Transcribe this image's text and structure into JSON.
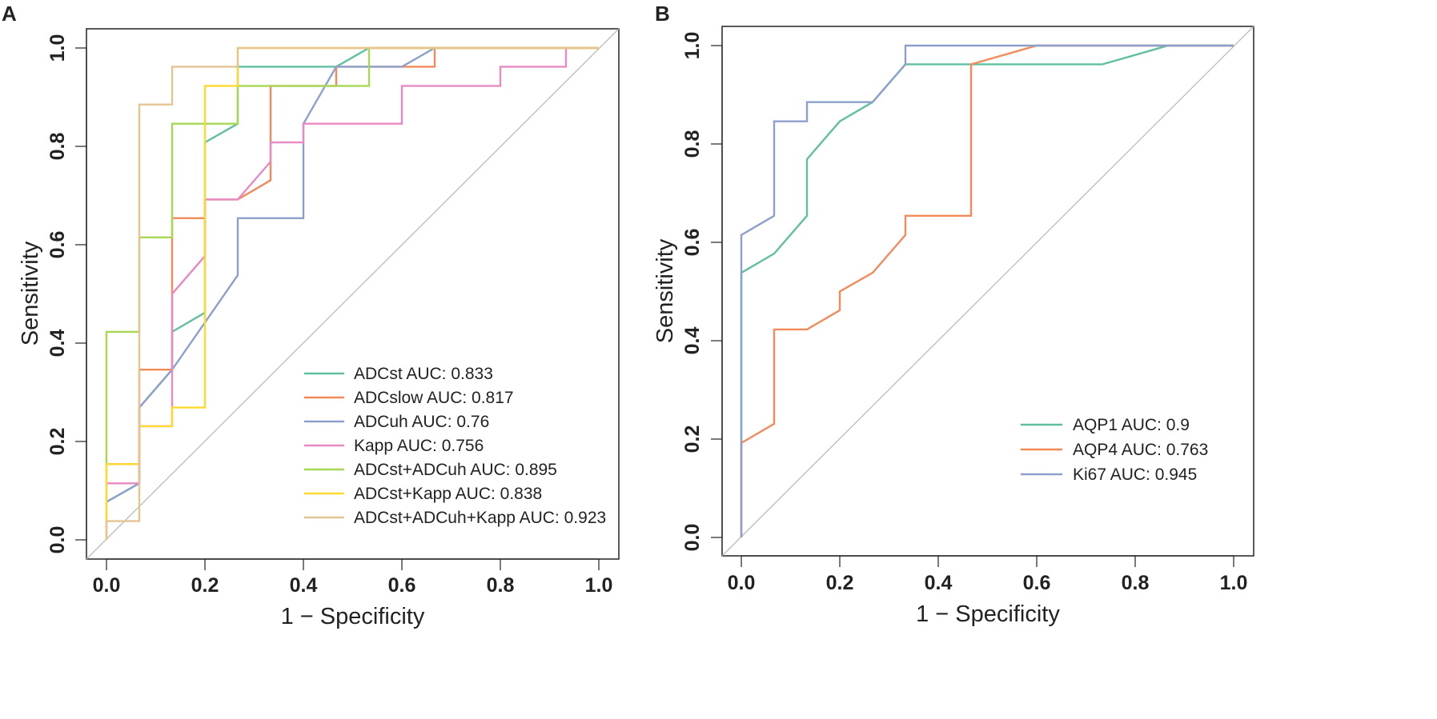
{
  "figure": {
    "panels": [
      "A",
      "B"
    ]
  },
  "chart_data": [
    {
      "type": "line",
      "panel": "A",
      "xlabel": "1 − Specificity",
      "ylabel": "Sensitivity",
      "xlim": [
        0,
        1
      ],
      "ylim": [
        0,
        1
      ],
      "ticks": [
        "0.0",
        "0.2",
        "0.4",
        "0.6",
        "0.8",
        "1.0"
      ],
      "legend_position": "bottom-right",
      "reference_line": {
        "from": [
          0,
          0
        ],
        "to": [
          1,
          1
        ],
        "color": "#bbbbbb"
      },
      "series": [
        {
          "name": "ADCst",
          "legend": "ADCst AUC: 0.833",
          "color": "#5fbfa0",
          "points": [
            [
              0,
              0.077
            ],
            [
              0.0667,
              0.115
            ],
            [
              0.0667,
              0.269
            ],
            [
              0.1333,
              0.346
            ],
            [
              0.1333,
              0.423
            ],
            [
              0.2,
              0.462
            ],
            [
              0.2,
              0.808
            ],
            [
              0.2667,
              0.846
            ],
            [
              0.2667,
              0.962
            ],
            [
              0.4667,
              0.962
            ],
            [
              0.5333,
              1
            ],
            [
              1,
              1
            ]
          ]
        },
        {
          "name": "ADCslow",
          "legend": "ADCslow AUC: 0.817",
          "color": "#f38a5a",
          "points": [
            [
              0,
              0.154
            ],
            [
              0.0667,
              0.154
            ],
            [
              0.0667,
              0.346
            ],
            [
              0.1333,
              0.346
            ],
            [
              0.1333,
              0.654
            ],
            [
              0.2,
              0.654
            ],
            [
              0.2,
              0.692
            ],
            [
              0.2667,
              0.692
            ],
            [
              0.3333,
              0.731
            ],
            [
              0.3333,
              0.923
            ],
            [
              0.4667,
              0.923
            ],
            [
              0.4667,
              0.962
            ],
            [
              0.6667,
              0.962
            ],
            [
              0.6667,
              1
            ],
            [
              1,
              1
            ]
          ]
        },
        {
          "name": "ADCuh",
          "legend": "ADCuh AUC: 0.76",
          "color": "#8da0cb",
          "points": [
            [
              0,
              0.077
            ],
            [
              0.0667,
              0.115
            ],
            [
              0.0667,
              0.269
            ],
            [
              0.1333,
              0.346
            ],
            [
              0.2,
              0.442
            ],
            [
              0.2667,
              0.538
            ],
            [
              0.2667,
              0.654
            ],
            [
              0.4,
              0.654
            ],
            [
              0.4,
              0.846
            ],
            [
              0.4667,
              0.962
            ],
            [
              0.6,
              0.962
            ],
            [
              0.6667,
              1
            ],
            [
              1,
              1
            ]
          ]
        },
        {
          "name": "Kapp",
          "legend": "Kapp AUC: 0.756",
          "color": "#e78ac3",
          "points": [
            [
              0,
              0.115
            ],
            [
              0.0667,
              0.115
            ],
            [
              0.0667,
              0.231
            ],
            [
              0.1333,
              0.231
            ],
            [
              0.1333,
              0.5
            ],
            [
              0.2,
              0.577
            ],
            [
              0.2,
              0.692
            ],
            [
              0.2667,
              0.692
            ],
            [
              0.3333,
              0.769
            ],
            [
              0.3333,
              0.808
            ],
            [
              0.4,
              0.808
            ],
            [
              0.4,
              0.846
            ],
            [
              0.6,
              0.846
            ],
            [
              0.6,
              0.923
            ],
            [
              0.8,
              0.923
            ],
            [
              0.8,
              0.962
            ],
            [
              0.9333,
              0.962
            ],
            [
              0.9333,
              1
            ],
            [
              1,
              1
            ]
          ]
        },
        {
          "name": "ADCst+ADCuh",
          "legend": "ADCst+ADCuh AUC: 0.895",
          "color": "#a6d854",
          "points": [
            [
              0,
              0
            ],
            [
              0,
              0.423
            ],
            [
              0.0667,
              0.423
            ],
            [
              0.0667,
              0.615
            ],
            [
              0.1333,
              0.615
            ],
            [
              0.1333,
              0.846
            ],
            [
              0.2667,
              0.846
            ],
            [
              0.2667,
              0.923
            ],
            [
              0.5333,
              0.923
            ],
            [
              0.5333,
              1
            ],
            [
              1,
              1
            ]
          ]
        },
        {
          "name": "ADCst+Kapp",
          "legend": "ADCst+Kapp AUC: 0.838",
          "color": "#ffd92f",
          "points": [
            [
              0,
              0
            ],
            [
              0,
              0.154
            ],
            [
              0.0667,
              0.154
            ],
            [
              0.0667,
              0.231
            ],
            [
              0.1333,
              0.231
            ],
            [
              0.1333,
              0.269
            ],
            [
              0.2,
              0.269
            ],
            [
              0.2,
              0.923
            ],
            [
              0.2667,
              0.923
            ],
            [
              0.2667,
              1
            ],
            [
              1,
              1
            ]
          ]
        },
        {
          "name": "ADCst+ADCuh+Kapp",
          "legend": "ADCst+ADCuh+Kapp AUC: 0.923",
          "color": "#e5c494",
          "points": [
            [
              0,
              0
            ],
            [
              0,
              0.038
            ],
            [
              0.0667,
              0.038
            ],
            [
              0.0667,
              0.885
            ],
            [
              0.1333,
              0.885
            ],
            [
              0.1333,
              0.962
            ],
            [
              0.2667,
              0.962
            ],
            [
              0.2667,
              1
            ],
            [
              1,
              1
            ]
          ]
        }
      ]
    },
    {
      "type": "line",
      "panel": "B",
      "xlabel": "1 − Specificity",
      "ylabel": "Sensitivity",
      "xlim": [
        0,
        1
      ],
      "ylim": [
        0,
        1
      ],
      "ticks": [
        "0.0",
        "0.2",
        "0.4",
        "0.6",
        "0.8",
        "1.0"
      ],
      "legend_position": "bottom-right",
      "reference_line": {
        "from": [
          0,
          0
        ],
        "to": [
          1,
          1
        ],
        "color": "#bbbbbb"
      },
      "series": [
        {
          "name": "AQP1",
          "legend": "AQP1 AUC: 0.9",
          "color": "#5fbfa0",
          "points": [
            [
              0,
              0
            ],
            [
              0,
              0.538
            ],
            [
              0.0667,
              0.577
            ],
            [
              0.1333,
              0.654
            ],
            [
              0.1333,
              0.769
            ],
            [
              0.2,
              0.846
            ],
            [
              0.2667,
              0.885
            ],
            [
              0.3333,
              0.962
            ],
            [
              0.7333,
              0.962
            ],
            [
              0.8667,
              1
            ],
            [
              1,
              1
            ]
          ]
        },
        {
          "name": "AQP4",
          "legend": "AQP4 AUC: 0.763",
          "color": "#f38a5a",
          "points": [
            [
              0,
              0
            ],
            [
              0,
              0.192
            ],
            [
              0.0667,
              0.231
            ],
            [
              0.0667,
              0.423
            ],
            [
              0.1333,
              0.423
            ],
            [
              0.2,
              0.462
            ],
            [
              0.2,
              0.5
            ],
            [
              0.2667,
              0.538
            ],
            [
              0.3333,
              0.615
            ],
            [
              0.3333,
              0.654
            ],
            [
              0.4667,
              0.654
            ],
            [
              0.4667,
              0.962
            ],
            [
              0.6,
              1
            ],
            [
              1,
              1
            ]
          ]
        },
        {
          "name": "Ki67",
          "legend": "Ki67 AUC: 0.945",
          "color": "#8da0cb",
          "points": [
            [
              0,
              0
            ],
            [
              0,
              0.615
            ],
            [
              0.0667,
              0.654
            ],
            [
              0.0667,
              0.846
            ],
            [
              0.1333,
              0.846
            ],
            [
              0.1333,
              0.885
            ],
            [
              0.2667,
              0.885
            ],
            [
              0.3333,
              0.962
            ],
            [
              0.3333,
              1
            ],
            [
              1,
              1
            ]
          ]
        }
      ]
    }
  ]
}
